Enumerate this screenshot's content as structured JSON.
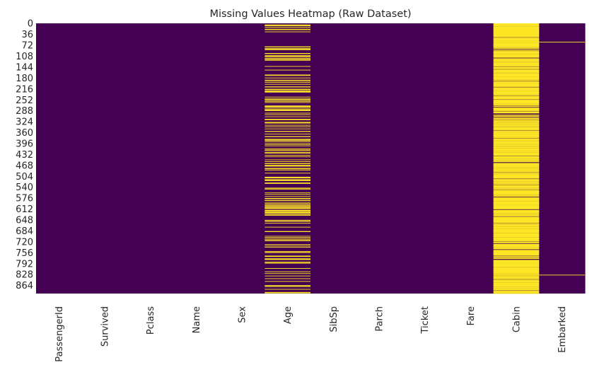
{
  "chart_data": {
    "type": "heatmap",
    "title": "Missing Values Heatmap (Raw Dataset)",
    "xlabel": "",
    "ylabel": "",
    "n_rows": 891,
    "columns": [
      "PassengerId",
      "Survived",
      "Pclass",
      "Name",
      "Sex",
      "Age",
      "SibSp",
      "Parch",
      "Ticket",
      "Fare",
      "Cabin",
      "Embarked"
    ],
    "y_tick_labels": [
      "0",
      "36",
      "72",
      "108",
      "144",
      "180",
      "216",
      "252",
      "288",
      "324",
      "360",
      "396",
      "432",
      "468",
      "504",
      "540",
      "576",
      "612",
      "648",
      "684",
      "720",
      "756",
      "792",
      "828",
      "864"
    ],
    "missing_counts": {
      "PassengerId": 0,
      "Survived": 0,
      "Pclass": 0,
      "Name": 0,
      "Sex": 0,
      "Age": 177,
      "SibSp": 0,
      "Parch": 0,
      "Ticket": 0,
      "Fare": 0,
      "Cabin": 687,
      "Embarked": 2
    },
    "missing_row_indices": {
      "Embarked": [
        61,
        829
      ]
    },
    "colormap": "viridis",
    "color_present": "#440154",
    "color_missing": "#fde725",
    "colorbar": false,
    "grid": false
  }
}
